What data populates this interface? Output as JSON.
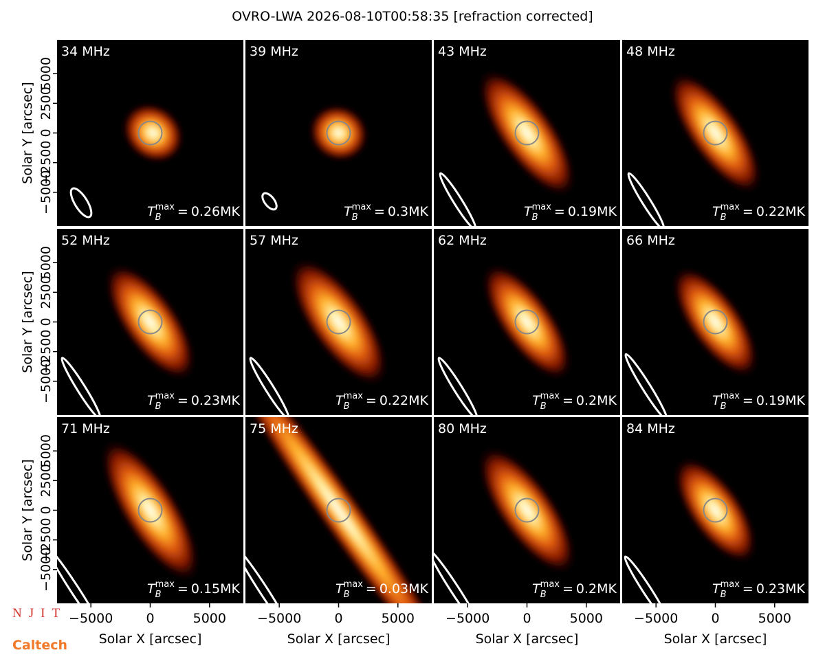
{
  "title": "OVRO-LWA 2026-08-10T00:58:35 [refraction corrected]",
  "xlabel": "Solar X [arcsec]",
  "ylabel": "Solar Y [arcsec]",
  "xlim": [
    -7850,
    7850
  ],
  "ylim": [
    -7850,
    7850
  ],
  "xticks": [
    {
      "value": -5000,
      "label": "−5000"
    },
    0,
    5000
  ],
  "yticks": [
    {
      "value": -5000,
      "label": "−5000"
    },
    {
      "value": -2500,
      "label": "−2500"
    },
    0,
    2500,
    5000
  ],
  "tb_symbol": "T",
  "tb_sub": "B",
  "tb_sup": "max",
  "tb_eq": "=",
  "panels": [
    {
      "label": "34 MHz",
      "tb_max": {
        "value": 0.26,
        "label": "0.26MK"
      }
    },
    {
      "label": "39 MHz",
      "tb_max": {
        "value": 0.3,
        "label": "0.3MK"
      }
    },
    {
      "label": "43 MHz",
      "tb_max": {
        "value": 0.19,
        "label": "0.19MK"
      }
    },
    {
      "label": "48 MHz",
      "tb_max": {
        "value": 0.22,
        "label": "0.22MK"
      }
    },
    {
      "label": "52 MHz",
      "tb_max": {
        "value": 0.23,
        "label": "0.23MK"
      }
    },
    {
      "label": "57 MHz",
      "tb_max": {
        "value": 0.22,
        "label": "0.22MK"
      }
    },
    {
      "label": "62 MHz",
      "tb_max": {
        "value": 0.2,
        "label": "0.2MK"
      }
    },
    {
      "label": "66 MHz",
      "tb_max": {
        "value": 0.19,
        "label": "0.19MK"
      }
    },
    {
      "label": "71 MHz",
      "tb_max": {
        "value": 0.15,
        "label": "0.15MK"
      }
    },
    {
      "label": "75 MHz",
      "tb_max": {
        "value": 0.03,
        "label": "0.03MK"
      }
    },
    {
      "label": "80 MHz",
      "tb_max": {
        "value": 0.2,
        "label": "0.2MK"
      }
    },
    {
      "label": "84 MHz",
      "tb_max": {
        "value": 0.23,
        "label": "0.23MK"
      }
    }
  ],
  "logos": [
    "NJIT",
    "Caltech"
  ]
}
